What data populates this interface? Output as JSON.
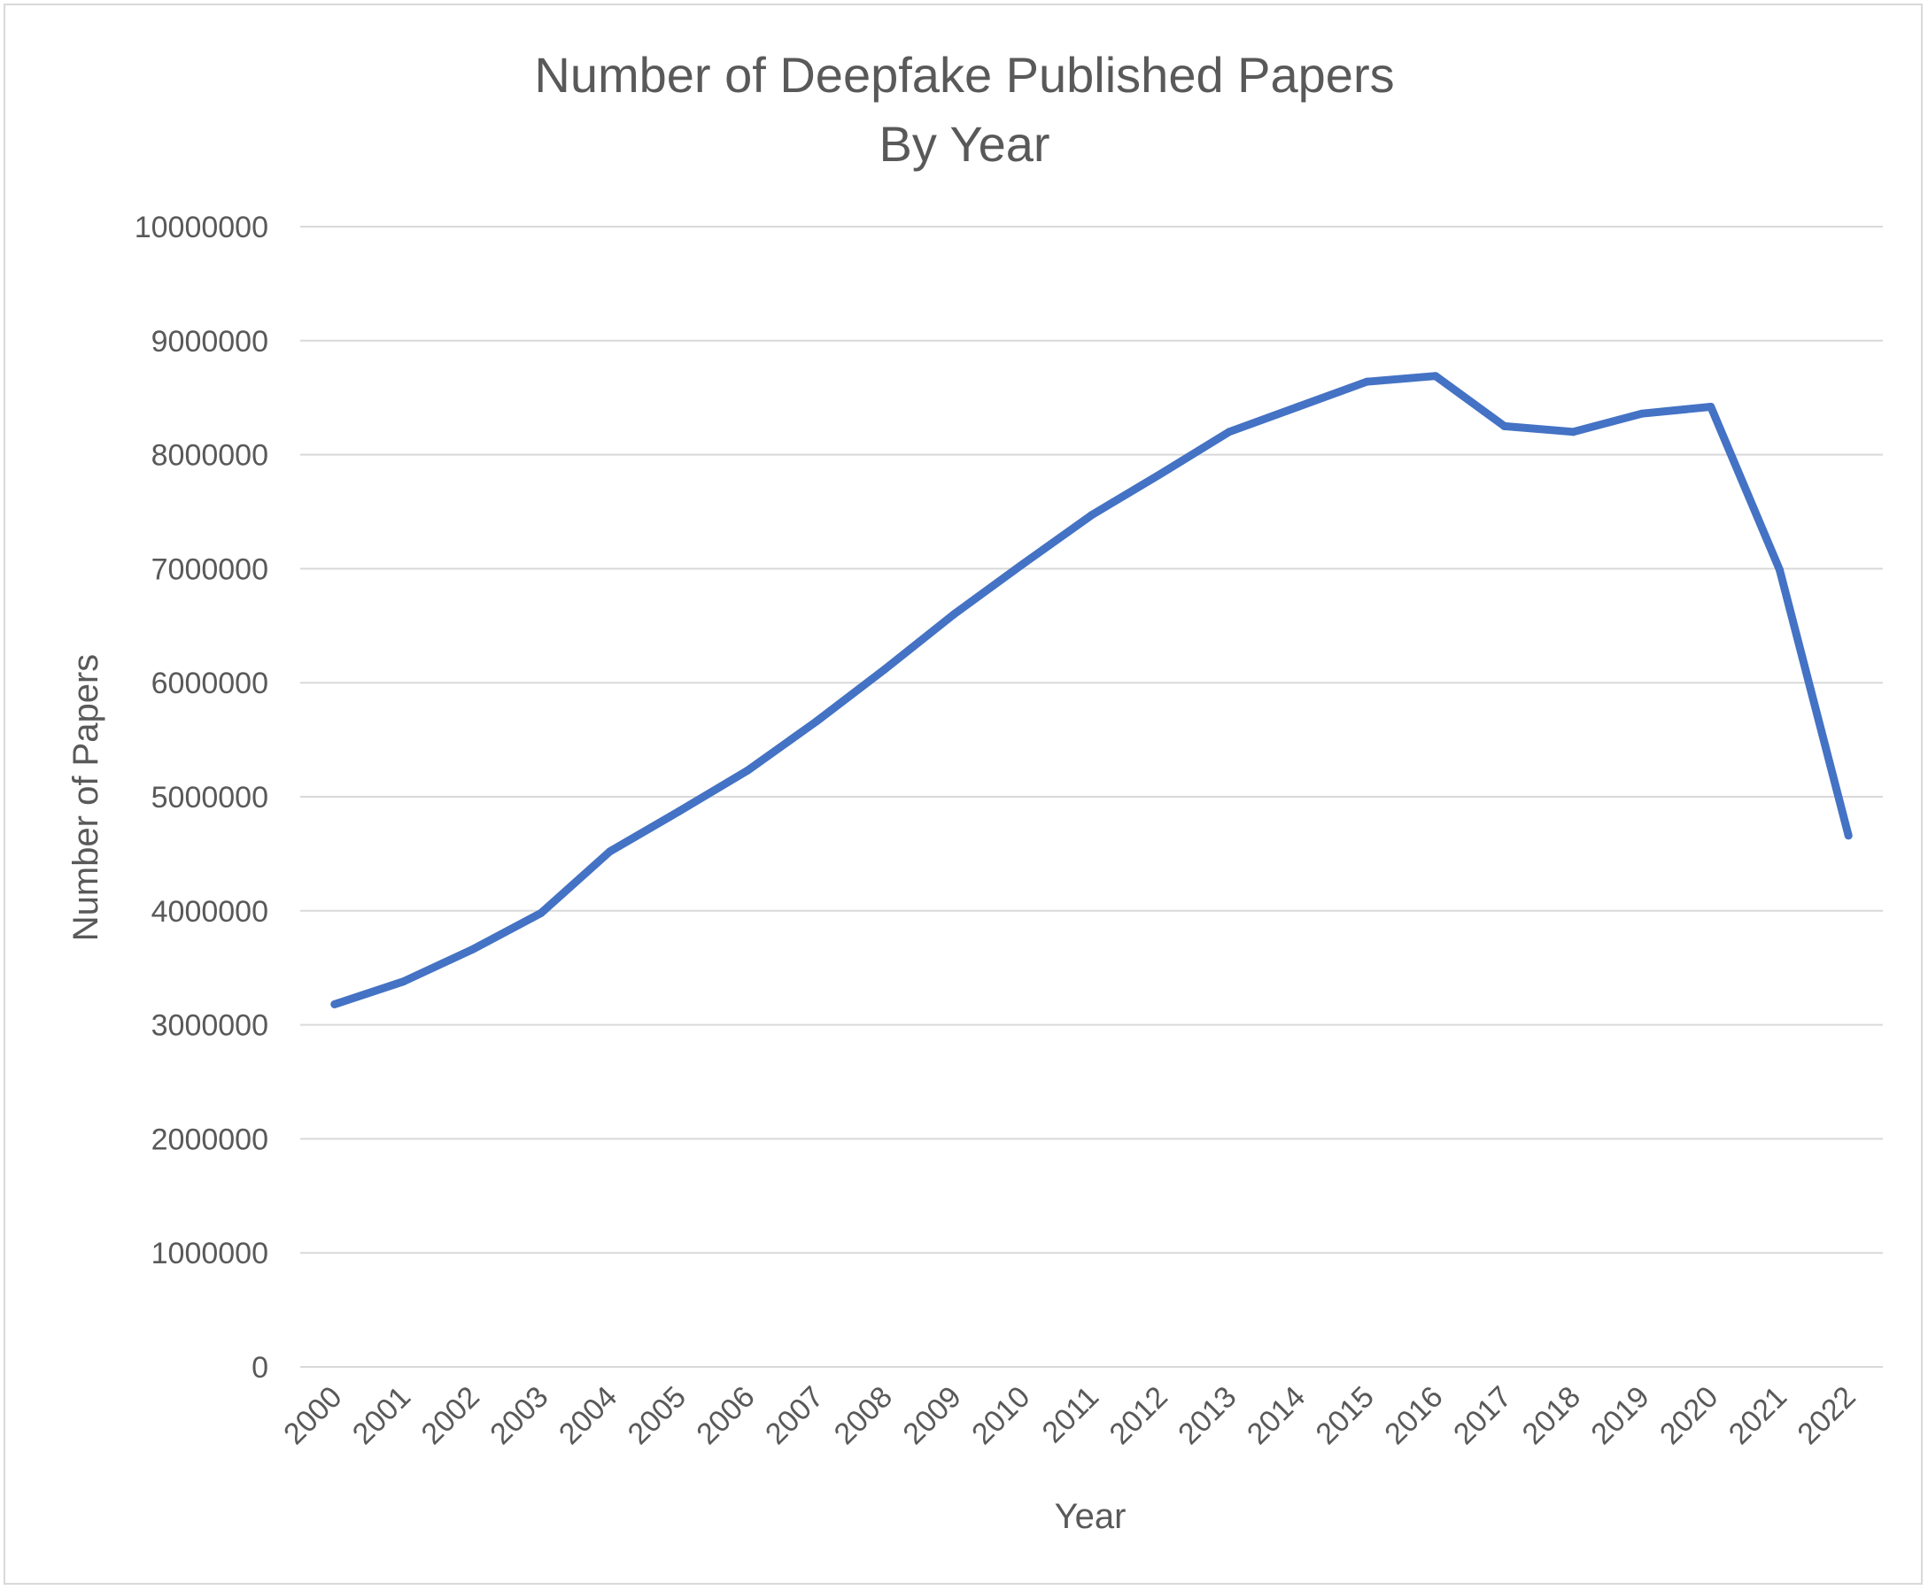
{
  "chart_data": {
    "type": "line",
    "title": "Number of Deepfake Published Papers",
    "subtitle": "By Year",
    "xlabel": "Year",
    "ylabel": "Number of Papers",
    "ylim": [
      0,
      10000000
    ],
    "yticks": [
      "0",
      "1000000",
      "2000000",
      "3000000",
      "4000000",
      "5000000",
      "6000000",
      "7000000",
      "8000000",
      "9000000",
      "10000000"
    ],
    "ytick_values": [
      0,
      1000000,
      2000000,
      3000000,
      4000000,
      5000000,
      6000000,
      7000000,
      8000000,
      9000000,
      10000000
    ],
    "categories": [
      "2000",
      "2001",
      "2002",
      "2003",
      "2004",
      "2005",
      "2006",
      "2007",
      "2008",
      "2009",
      "2010",
      "2011",
      "2012",
      "2013",
      "2014",
      "2015",
      "2016",
      "2017",
      "2018",
      "2019",
      "2020",
      "2021",
      "2022"
    ],
    "grid": true,
    "legend": "none",
    "series": [
      {
        "color": "#4472c4",
        "values": [
          3180000,
          3380000,
          3660000,
          3980000,
          4520000,
          4870000,
          5230000,
          5660000,
          6120000,
          6600000,
          7040000,
          7470000,
          7830000,
          8200000,
          8420000,
          8640000,
          8690000,
          8250000,
          8200000,
          8360000,
          8420000,
          6990000,
          4660000
        ]
      }
    ]
  }
}
